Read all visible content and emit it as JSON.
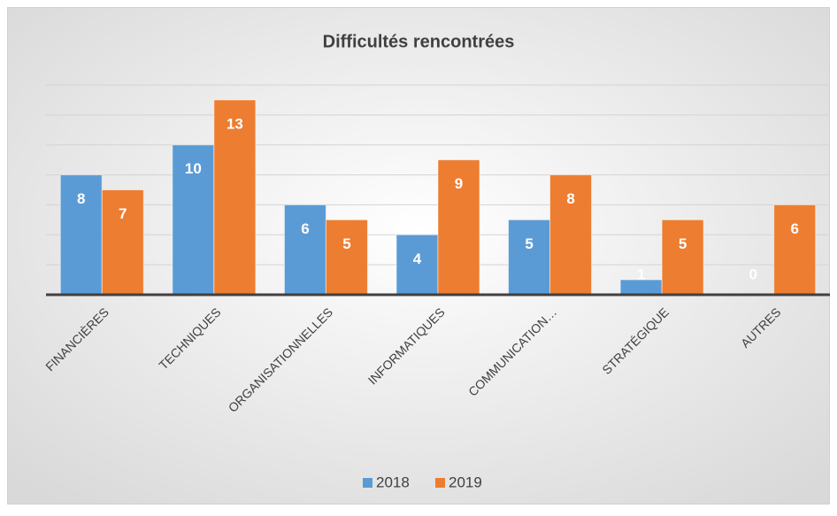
{
  "chart_data": {
    "type": "bar",
    "title": "Difficultés rencontrées",
    "categories": [
      "FINANCIÈRES",
      "TECHNIQUES",
      "ORGANISATIONNELLES",
      "INFORMATIQUES",
      "COMMUNICATION…",
      "STRATÉGIQUE",
      "AUTRES"
    ],
    "series": [
      {
        "name": "2018",
        "color": "#5b9bd5",
        "values": [
          8,
          10,
          6,
          4,
          5,
          1,
          0
        ]
      },
      {
        "name": "2019",
        "color": "#ed7d31",
        "values": [
          7,
          13,
          5,
          9,
          8,
          5,
          6
        ]
      }
    ],
    "ylim": [
      0,
      14
    ],
    "yticks": [
      0,
      2,
      4,
      6,
      8,
      10,
      12,
      14
    ],
    "grid": true,
    "legend": "bottom"
  }
}
